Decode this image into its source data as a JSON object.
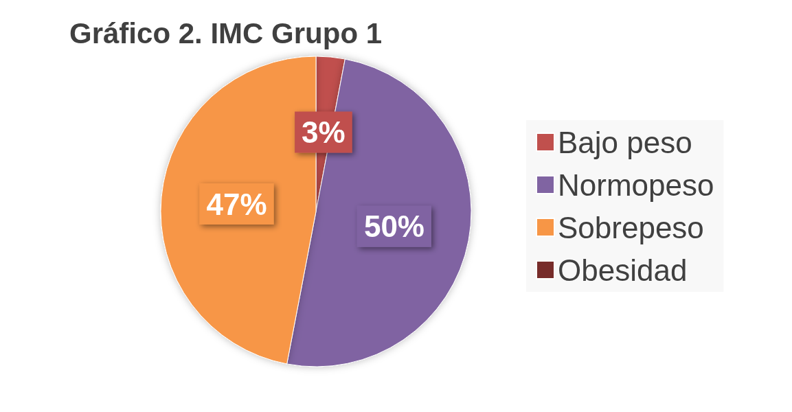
{
  "chart_data": {
    "type": "pie",
    "title": "Gráfico 2. IMC Grupo 1",
    "categories": [
      "Bajo peso",
      "Normopeso",
      "Sobrepeso",
      "Obesidad"
    ],
    "values": [
      3,
      50,
      47,
      0
    ],
    "colors": [
      "#c0504d",
      "#8064a2",
      "#f79646",
      "#772c2a"
    ],
    "value_labels": [
      "3%",
      "50%",
      "47%",
      null
    ],
    "legend": "right"
  }
}
